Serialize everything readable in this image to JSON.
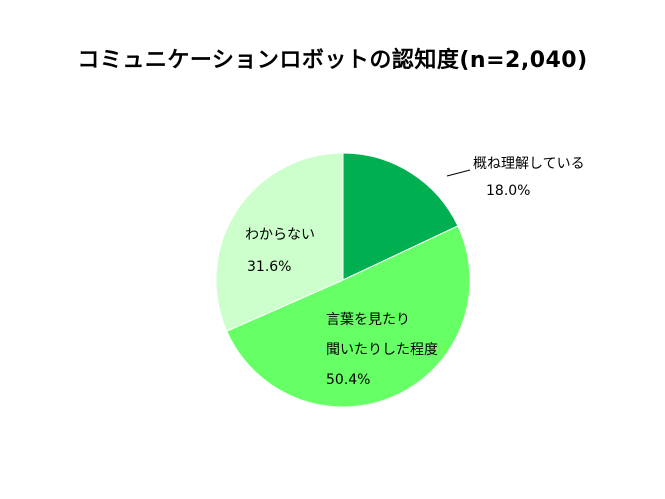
{
  "chart_data": {
    "type": "pie",
    "title": "コミュニケーションロボットの認知度(n=2,040)",
    "slices": [
      {
        "label": "概ね理解している",
        "label_lines": [
          "概ね理解している"
        ],
        "value": 18.0,
        "value_text": "18.0%",
        "color": "#00b050"
      },
      {
        "label": "言葉を見たり聞いたりした程度",
        "label_lines": [
          "言葉を見たり",
          "聞いたりした程度"
        ],
        "value": 50.4,
        "value_text": "50.4%",
        "color": "#66ff66"
      },
      {
        "label": "わからない",
        "label_lines": [
          "わからない"
        ],
        "value": 31.6,
        "value_text": "31.6%",
        "color": "#ccffcc"
      }
    ],
    "start_angle": "12 o'clock",
    "direction": "clockwise"
  }
}
